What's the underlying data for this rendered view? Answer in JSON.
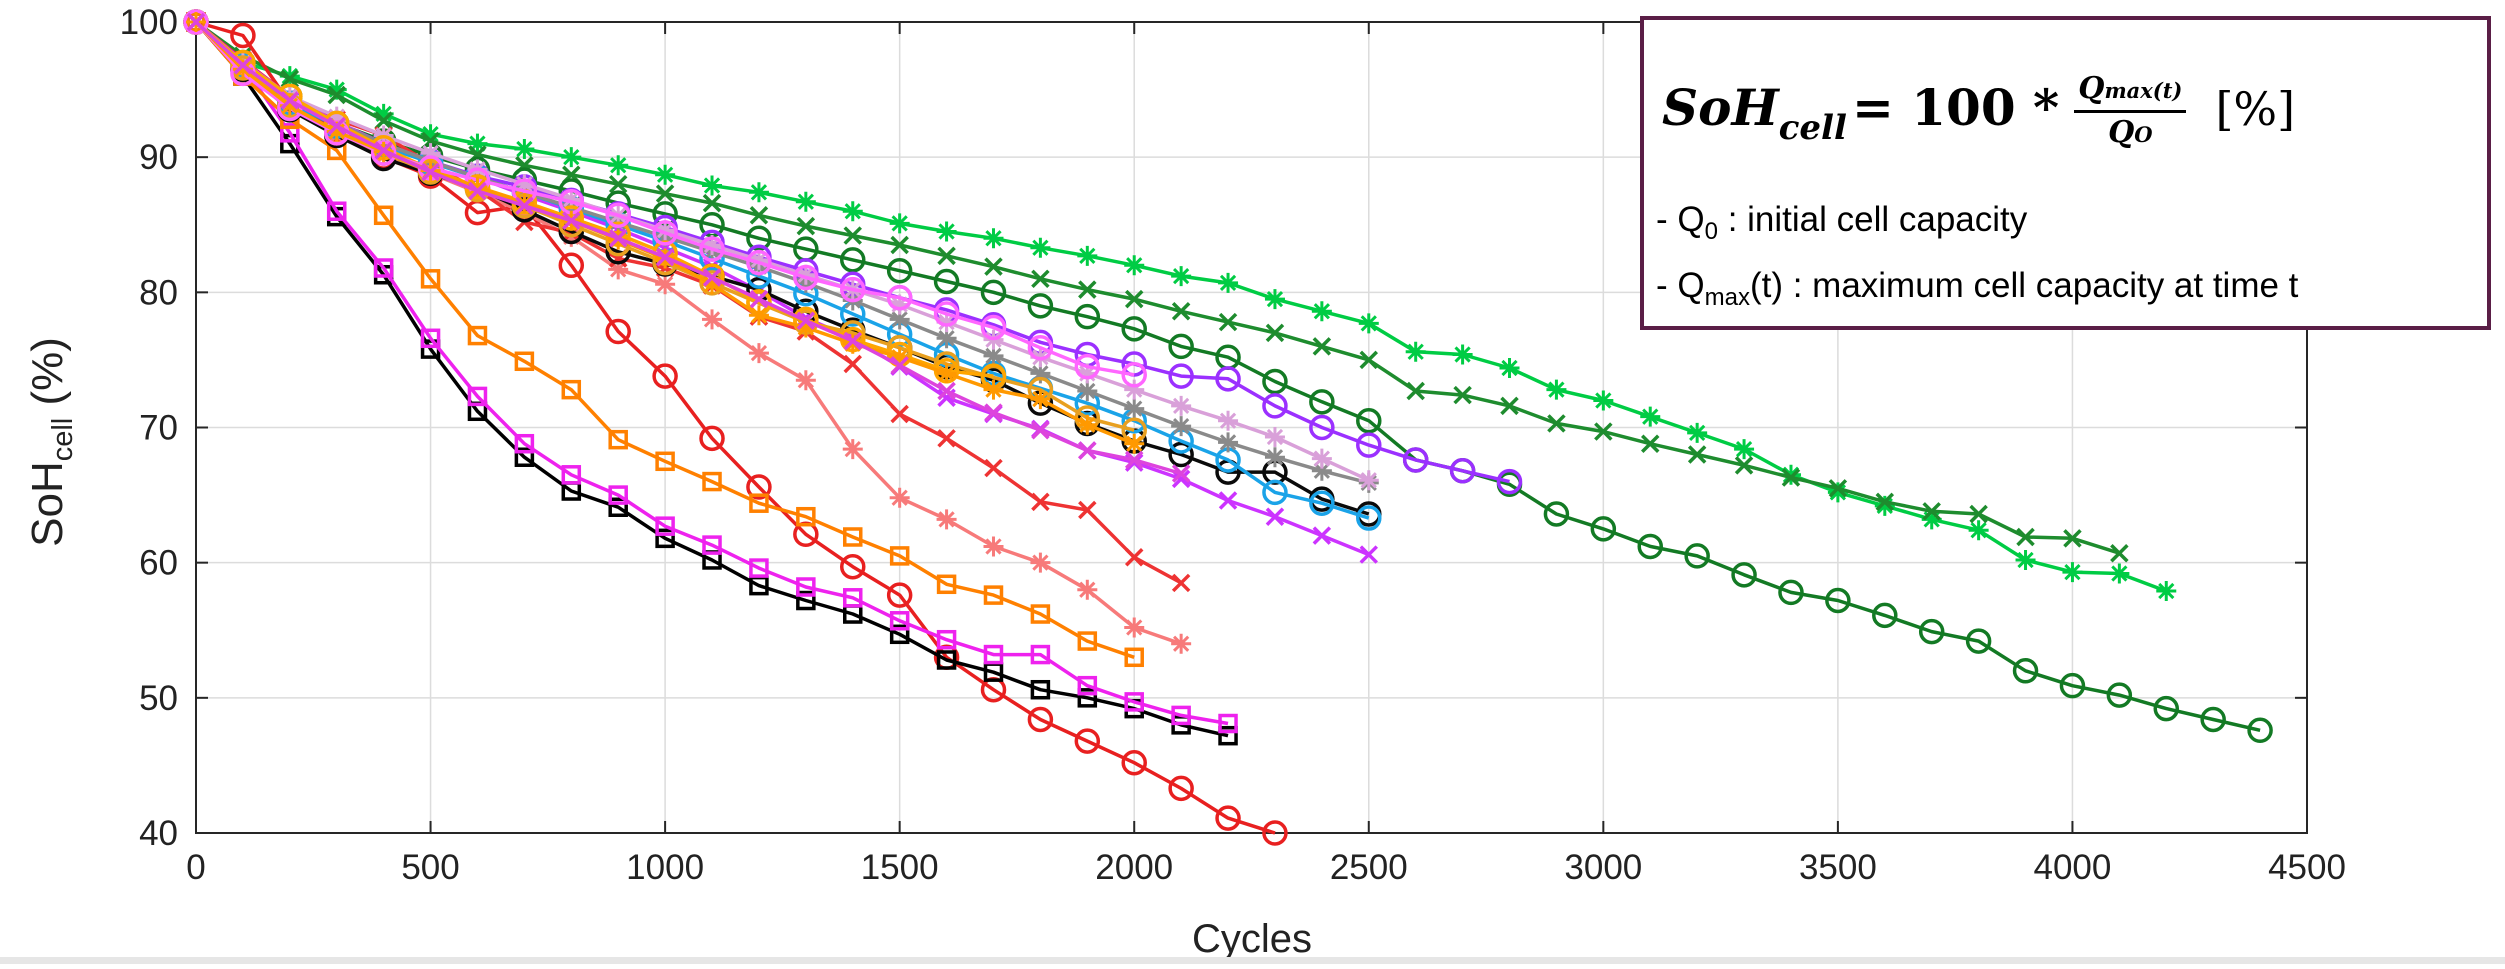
{
  "chart_data": {
    "type": "line",
    "xlabel": "Cycles",
    "ylabel": {
      "main": "SoH",
      "sub": "cell",
      "suffix": " (%)"
    },
    "xlim": [
      0,
      4500
    ],
    "ylim": [
      40,
      100
    ],
    "xticks": [
      0,
      500,
      1000,
      1500,
      2000,
      2500,
      3000,
      3500,
      4000,
      4500
    ],
    "yticks": [
      40,
      50,
      60,
      70,
      80,
      90,
      100
    ],
    "grid": true,
    "legend": "none",
    "annotation": {
      "formula": {
        "lhs": "SoH",
        "lhs_sub": "cell",
        "operator": "= 100 *",
        "numerator": "Q",
        "numerator_sub": "max(t)",
        "denominator": "Q",
        "denominator_sub": "O",
        "unit": "[%]"
      },
      "note1": {
        "prefix": "- Q",
        "sub": "0",
        "text": " : initial cell capacity"
      },
      "note2": {
        "prefix": "- Q",
        "sub": "max",
        "text": "(t) : maximum cell capacity at time t"
      }
    },
    "series": [
      {
        "color": "#00cc44",
        "marker": "asterisk",
        "x": [
          0,
          100,
          200,
          300,
          400,
          500,
          600,
          700,
          800,
          900,
          1000,
          1100,
          1200,
          1300,
          1400,
          1500,
          1600,
          1700,
          1800,
          1900,
          2000,
          2100,
          2200,
          2300,
          2400,
          2500,
          2600,
          2700,
          2800,
          2900,
          3000,
          3100,
          3200,
          3300,
          3400,
          3500,
          3600,
          3700,
          3800,
          3900,
          4000,
          4100,
          4200
        ],
        "y": [
          100,
          97,
          96,
          95,
          93.2,
          91.7,
          91,
          90.6,
          90,
          89.4,
          88.7,
          87.9,
          87.4,
          86.7,
          86,
          85.1,
          84.5,
          84,
          83.3,
          82.7,
          82,
          81.2,
          80.7,
          79.5,
          78.6,
          77.7,
          75.6,
          75.4,
          74.4,
          72.8,
          72,
          70.8,
          69.6,
          68.4,
          66.5,
          65.2,
          64.2,
          63.2,
          62.4,
          60.2,
          59.3,
          59.2,
          57.9
        ]
      },
      {
        "color": "#1e8c2e",
        "marker": "cross",
        "x": [
          0,
          100,
          200,
          300,
          400,
          500,
          600,
          700,
          800,
          900,
          1000,
          1100,
          1200,
          1300,
          1400,
          1500,
          1600,
          1700,
          1800,
          1900,
          2000,
          2100,
          2200,
          2300,
          2400,
          2500,
          2600,
          2700,
          2800,
          2900,
          3000,
          3100,
          3200,
          3300,
          3400,
          3500,
          3600,
          3700,
          3800,
          3900,
          4000,
          4100
        ],
        "y": [
          100,
          97.5,
          95.8,
          94.6,
          92.7,
          91.2,
          90.2,
          89.4,
          88.7,
          88,
          87.3,
          86.6,
          85.7,
          84.9,
          84.2,
          83.5,
          82.7,
          81.9,
          81,
          80.2,
          79.5,
          78.6,
          77.8,
          77,
          76,
          75,
          72.7,
          72.4,
          71.6,
          70.3,
          69.7,
          68.8,
          68,
          67.2,
          66.3,
          65.5,
          64.5,
          63.8,
          63.6,
          61.9,
          61.8,
          60.7
        ]
      },
      {
        "color": "#137a24",
        "marker": "circle",
        "x": [
          0,
          100,
          200,
          300,
          400,
          500,
          600,
          700,
          800,
          900,
          1000,
          1100,
          1200,
          1300,
          1400,
          1500,
          1600,
          1700,
          1800,
          1900,
          2000,
          2100,
          2200,
          2300,
          2400,
          2500,
          2600,
          2700,
          2800,
          2900,
          3000,
          3100,
          3200,
          3300,
          3400,
          3500,
          3600,
          3700,
          3800,
          3900,
          4000,
          4100,
          4200,
          4300,
          4400
        ],
        "y": [
          100,
          97,
          94.5,
          92.5,
          91.2,
          90.1,
          89.1,
          88.3,
          87.5,
          86.6,
          85.8,
          85,
          84,
          83.2,
          82.4,
          81.6,
          80.8,
          80,
          79,
          78.2,
          77.3,
          76,
          75.2,
          73.4,
          71.9,
          70.5,
          67.6,
          66.8,
          65.8,
          63.6,
          62.5,
          61.2,
          60.5,
          59.1,
          57.8,
          57.2,
          56.1,
          54.9,
          54.2,
          52,
          50.9,
          50.2,
          49.2,
          48.4,
          47.6
        ]
      },
      {
        "color": "#9b30ff",
        "marker": "circle",
        "x": [
          0,
          100,
          200,
          300,
          400,
          500,
          600,
          700,
          800,
          900,
          1000,
          1100,
          1200,
          1300,
          1400,
          1500,
          1600,
          1700,
          1800,
          1900,
          2000,
          2100,
          2200,
          2300,
          2400,
          2500,
          2600,
          2700,
          2800
        ],
        "y": [
          100,
          96.5,
          93.8,
          91.9,
          90.7,
          89.7,
          88.6,
          87.8,
          86.8,
          85.8,
          84.8,
          83.7,
          82.6,
          81.6,
          80.6,
          79.6,
          78.7,
          77.6,
          76.3,
          75.4,
          74.7,
          73.8,
          73.6,
          71.6,
          70,
          68.7,
          67.6,
          66.8,
          66
        ]
      },
      {
        "color": "#e82020",
        "marker": "circle",
        "x": [
          0,
          100,
          200,
          300,
          400,
          500,
          600,
          700,
          800,
          900,
          1000,
          1100,
          1200,
          1300,
          1400,
          1500,
          1600,
          1700,
          1800,
          1900,
          2000,
          2100,
          2200,
          2300
        ],
        "y": [
          100,
          99,
          94,
          92,
          90,
          88.6,
          85.9,
          86.4,
          82,
          77.1,
          73.8,
          69.2,
          65.6,
          62.1,
          59.7,
          57.6,
          53,
          50.6,
          48.4,
          46.8,
          45.2,
          43.3,
          41.1,
          40
        ]
      },
      {
        "color": "#000000",
        "marker": "square",
        "x": [
          0,
          100,
          200,
          300,
          400,
          500,
          600,
          700,
          800,
          900,
          1000,
          1100,
          1200,
          1300,
          1400,
          1500,
          1600,
          1700,
          1800,
          1900,
          2000,
          2100,
          2200
        ],
        "y": [
          100,
          96,
          91,
          85.6,
          81.3,
          75.8,
          71.2,
          67.8,
          65.3,
          64.1,
          61.8,
          60.2,
          58.3,
          57.2,
          56.2,
          54.7,
          52.8,
          51.9,
          50.6,
          50,
          49.2,
          48,
          47.2
        ]
      },
      {
        "color": "#ee22ee",
        "marker": "square",
        "x": [
          0,
          100,
          200,
          300,
          400,
          500,
          600,
          700,
          800,
          900,
          1000,
          1100,
          1200,
          1300,
          1400,
          1500,
          1600,
          1700,
          1800,
          1900,
          2000,
          2100,
          2200
        ],
        "y": [
          100,
          96.8,
          91.8,
          86,
          81.8,
          76.6,
          72.3,
          68.8,
          66.5,
          65,
          62.7,
          61.3,
          59.6,
          58.2,
          57.4,
          55.7,
          54.3,
          53.2,
          53.2,
          50.9,
          49.7,
          48.7,
          48.1
        ]
      },
      {
        "color": "#ff8000",
        "marker": "square",
        "x": [
          0,
          100,
          200,
          300,
          400,
          500,
          600,
          700,
          800,
          900,
          1000,
          1100,
          1200,
          1300,
          1400,
          1500,
          1600,
          1700,
          1800,
          1900,
          2000
        ],
        "y": [
          100,
          96,
          92.8,
          90.5,
          85.7,
          81,
          76.8,
          74.9,
          72.8,
          69.1,
          67.5,
          66,
          64.4,
          63.4,
          61.9,
          60.5,
          58.4,
          57.6,
          56.2,
          54.2,
          53
        ]
      },
      {
        "color": "#f77a7a",
        "marker": "asterisk",
        "x": [
          0,
          100,
          200,
          300,
          400,
          500,
          600,
          700,
          800,
          900,
          1000,
          1100,
          1200,
          1300,
          1400,
          1500,
          1600,
          1700,
          1800,
          1900,
          2000,
          2100
        ],
        "y": [
          100,
          96.4,
          93.6,
          91.6,
          90.1,
          88.8,
          87.4,
          85.9,
          84.1,
          81.7,
          80.6,
          78,
          75.5,
          73.5,
          68.4,
          64.8,
          63.2,
          61.2,
          60,
          58,
          55.2,
          54
        ]
      },
      {
        "color": "#ee3333",
        "marker": "cross",
        "x": [
          0,
          100,
          200,
          300,
          400,
          500,
          600,
          700,
          800,
          900,
          1000,
          1100,
          1200,
          1300,
          1400,
          1500,
          1600,
          1700,
          1800,
          1900,
          2000,
          2100
        ],
        "y": [
          100,
          97.2,
          94.5,
          92.8,
          91.6,
          89.5,
          87.6,
          85.2,
          84.4,
          82.5,
          81.8,
          80.5,
          78.2,
          77.1,
          74.7,
          71,
          69.2,
          67,
          64.5,
          63.9,
          60.4,
          58.5
        ]
      },
      {
        "color": "#cc33ff",
        "marker": "cross",
        "x": [
          0,
          100,
          200,
          300,
          400,
          500,
          600,
          700,
          800,
          900,
          1000,
          1100,
          1200,
          1300,
          1400,
          1500,
          1600,
          1700,
          1800,
          1900,
          2000,
          2100,
          2200,
          2300,
          2400,
          2500
        ],
        "y": [
          100,
          97.1,
          94.5,
          92.6,
          91,
          89.7,
          88.5,
          87.2,
          86,
          84.7,
          83.3,
          81.9,
          80.1,
          78.1,
          76.6,
          74.5,
          72.2,
          71,
          69.9,
          68.3,
          67.4,
          66.2,
          64.6,
          63.4,
          62,
          60.6
        ]
      },
      {
        "color": "#0a0a0a",
        "marker": "circle",
        "x": [
          0,
          100,
          200,
          300,
          400,
          500,
          600,
          700,
          800,
          900,
          1000,
          1100,
          1200,
          1300,
          1400,
          1500,
          1600,
          1700,
          1800,
          1900,
          2000,
          2100,
          2200,
          2300,
          2400,
          2500
        ],
        "y": [
          100,
          96.5,
          93.5,
          91.6,
          89.9,
          88.8,
          87.7,
          86.1,
          84.5,
          83,
          82.1,
          81.2,
          80.2,
          78.6,
          77.2,
          75.9,
          74.5,
          73.5,
          71.8,
          70.3,
          69,
          68,
          66.7,
          66.7,
          64.7,
          63.6
        ]
      },
      {
        "color": "#1aa3e8",
        "marker": "circle",
        "x": [
          0,
          100,
          200,
          300,
          400,
          500,
          600,
          700,
          800,
          900,
          1000,
          1100,
          1200,
          1300,
          1400,
          1500,
          1600,
          1700,
          1800,
          1900,
          2000,
          2100,
          2200,
          2300,
          2400,
          2500
        ],
        "y": [
          100,
          96.8,
          94,
          92.3,
          90.8,
          89.6,
          88.5,
          87.4,
          86.2,
          85,
          83.8,
          82.5,
          81.2,
          79.9,
          78.4,
          76.9,
          75.4,
          74,
          72.9,
          71.8,
          70.5,
          69,
          67.6,
          65.2,
          64.4,
          63.3
        ]
      },
      {
        "color": "#8a8a8a",
        "marker": "asterisk",
        "x": [
          0,
          100,
          200,
          300,
          400,
          500,
          600,
          700,
          800,
          900,
          1000,
          1100,
          1200,
          1300,
          1400,
          1500,
          1600,
          1700,
          1800,
          1900,
          2000,
          2100,
          2200,
          2300,
          2400,
          2500
        ],
        "y": [
          100,
          96.8,
          94.2,
          92.5,
          91,
          89.7,
          88.5,
          87.4,
          86.3,
          85.2,
          84.1,
          83,
          81.9,
          80.7,
          79.4,
          78,
          76.6,
          75.3,
          74,
          72.7,
          71.4,
          70.1,
          68.9,
          67.8,
          66.8,
          65.9
        ]
      },
      {
        "color": "#d9a0d9",
        "marker": "asterisk",
        "x": [
          0,
          100,
          200,
          300,
          400,
          500,
          600,
          700,
          800,
          900,
          1000,
          1100,
          1200,
          1300,
          1400,
          1500,
          1600,
          1700,
          1800,
          1900,
          2000,
          2100,
          2200,
          2300,
          2400,
          2500
        ],
        "y": [
          100,
          97,
          94.5,
          93,
          91.6,
          90.3,
          89.1,
          88,
          86.9,
          85.7,
          84.6,
          83.5,
          82.4,
          81.3,
          80.2,
          79.1,
          77.8,
          76.5,
          75.2,
          74,
          72.8,
          71.6,
          70.5,
          69.3,
          67.7,
          66.1
        ]
      },
      {
        "color": "#e8a020",
        "marker": "circle",
        "x": [
          0,
          100,
          200,
          300,
          400,
          500,
          600,
          700,
          800,
          900,
          1000,
          1100,
          1200,
          1300,
          1400,
          1500,
          1600,
          1700,
          1800,
          1900,
          2000
        ],
        "y": [
          100,
          96.6,
          93.8,
          91.8,
          90.3,
          88.9,
          87.6,
          86.4,
          85,
          83.6,
          82.2,
          80.7,
          79.2,
          77.8,
          77,
          75.9,
          74.7,
          73.7,
          72.8,
          70.7,
          69.8
        ]
      },
      {
        "color": "#ffa500",
        "marker": "circle",
        "x": [
          0,
          100,
          200,
          300,
          400,
          500,
          600,
          700,
          800,
          900,
          1000,
          1100,
          1200,
          1300,
          1400,
          1500,
          1600,
          1700
        ],
        "y": [
          100,
          97,
          94.5,
          92.5,
          90.7,
          89.1,
          87.8,
          86.7,
          85.5,
          84.3,
          82.9,
          81.2,
          79.3,
          78,
          76.5,
          75.4,
          74.2,
          73.8
        ]
      },
      {
        "color": "#ff66ff",
        "marker": "circle",
        "x": [
          0,
          100,
          200,
          300,
          400,
          500,
          600,
          700,
          800,
          900,
          1000,
          1100,
          1200,
          1300,
          1400,
          1500,
          1600,
          1700,
          1800,
          1900,
          2000
        ],
        "y": [
          100,
          96.2,
          93.6,
          91.8,
          90.3,
          89.2,
          88.3,
          87.5,
          86.7,
          85.7,
          84.4,
          83.2,
          82.2,
          81.1,
          80.2,
          79.6,
          78.4,
          77.4,
          75.9,
          74.5,
          73.9
        ]
      },
      {
        "color": "#ff9900",
        "marker": "asterisk",
        "x": [
          0,
          100,
          200,
          300,
          400,
          500,
          600,
          700,
          800,
          900,
          1000,
          1100,
          1200,
          1300,
          1400,
          1500,
          1600,
          1700,
          1800,
          1900,
          2000
        ],
        "y": [
          100,
          96.5,
          93.8,
          91.9,
          90.4,
          89,
          87.8,
          86.6,
          85.3,
          83.9,
          82.5,
          80.6,
          78.3,
          77.4,
          76.2,
          75.2,
          74,
          72.8,
          72.1,
          70.2,
          68.8
        ]
      },
      {
        "color": "#dd44dd",
        "marker": "cross",
        "x": [
          0,
          100,
          200,
          300,
          400,
          500,
          600,
          700,
          800,
          900,
          1000,
          1100,
          1200,
          1300,
          1400,
          1500,
          1600,
          1700,
          1800,
          1900,
          2000,
          2100
        ],
        "y": [
          100,
          96.8,
          94.2,
          92.3,
          90.5,
          88.9,
          87.5,
          86.4,
          85.3,
          84,
          82.6,
          81.1,
          79.5,
          77.9,
          76.4,
          74.6,
          72.7,
          71.1,
          69.8,
          68.3,
          67.6,
          66.6
        ]
      }
    ]
  }
}
